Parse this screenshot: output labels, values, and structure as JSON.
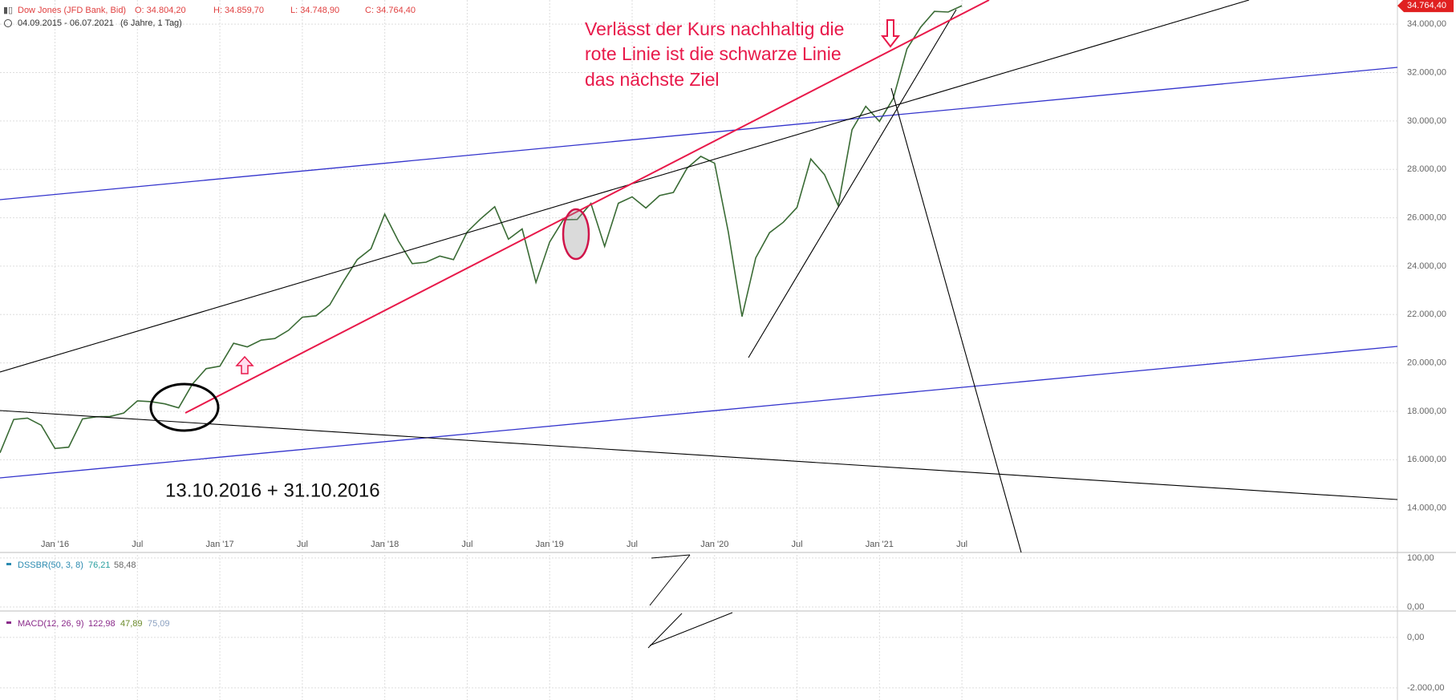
{
  "header": {
    "instrument": "Dow Jones (JFD Bank, Bid)",
    "open": "O: 34.804,20",
    "high": "H: 34.859,70",
    "low": "L: 34.748,90",
    "close": "C: 34.764,40",
    "range": "04.09.2015 - 06.07.2021",
    "period": "(6 Jahre, 1 Tag)"
  },
  "chart_data": [
    {
      "type": "line",
      "color": "#3a6b35",
      "categories": [
        null,
        null,
        null,
        null,
        "Jan '16",
        null,
        null,
        null,
        null,
        null,
        "Jul",
        null,
        null,
        null,
        null,
        null,
        "Jan '17",
        null,
        null,
        null,
        null,
        null,
        "Jul",
        null,
        null,
        null,
        null,
        null,
        "Jan '18",
        null,
        null,
        null,
        null,
        null,
        "Jul",
        null,
        null,
        null,
        null,
        null,
        "Jan '19",
        null,
        null,
        null,
        null,
        null,
        "Jul",
        null,
        null,
        null,
        null,
        null,
        "Jan '20",
        null,
        null,
        null,
        null,
        null,
        "Jul",
        null,
        null,
        null,
        null,
        null,
        "Jan '21",
        null,
        null,
        null,
        null,
        null,
        "Jul"
      ],
      "values": [
        16285,
        17664,
        17720,
        17425,
        16466,
        16517,
        17685,
        17774,
        17787,
        17930,
        18432,
        18401,
        18308,
        18142,
        19124,
        19763,
        19864,
        20812,
        20663,
        20941,
        21009,
        21350,
        21891,
        21948,
        22405,
        23377,
        24272,
        24719,
        26149,
        25029,
        24103,
        24163,
        24416,
        24271,
        25415,
        25965,
        26458,
        25116,
        25538,
        23327,
        24999,
        25916,
        25929,
        26593,
        24815,
        26600,
        26864,
        26403,
        26917,
        27046,
        28051,
        28538,
        28256,
        25409,
        21917,
        24346,
        25383,
        25813,
        26428,
        28430,
        27782,
        26502,
        29639,
        30606,
        29983,
        30932,
        32982,
        33875,
        34529,
        34503,
        34764
      ],
      "ylim": [
        12200,
        35000
      ],
      "yticks": [
        {
          "value": 14000,
          "label": "14.000,00"
        },
        {
          "value": 16000,
          "label": "16.000,00"
        },
        {
          "value": 18000,
          "label": "18.000,00"
        },
        {
          "value": 20000,
          "label": "20.000,00"
        },
        {
          "value": 22000,
          "label": "22.000,00"
        },
        {
          "value": 24000,
          "label": "24.000,00"
        },
        {
          "value": 26000,
          "label": "26.000,00"
        },
        {
          "value": 28000,
          "label": "28.000,00"
        },
        {
          "value": 30000,
          "label": "30.000,00"
        },
        {
          "value": 32000,
          "label": "32.000,00"
        },
        {
          "value": 34000,
          "label": "34.000,00"
        }
      ],
      "last_price": {
        "value": 34764.4,
        "label": "34.764,40"
      },
      "grid": true,
      "annotations": [
        "Verlässt der Kurs nachhaltig die",
        "rote Linie ist die schwarze Linie",
        "das nächste Ziel",
        "13.10.2016 + 31.10.2016"
      ]
    },
    {
      "type": "indicator",
      "title": "DSSBR(50, 3, 8)",
      "readings": [
        "76,21",
        "58,48"
      ],
      "ylim": [
        -5,
        108
      ],
      "yticks": [
        {
          "value": 0,
          "label": "0,00"
        },
        {
          "value": 100,
          "label": "100,00"
        }
      ]
    },
    {
      "type": "indicator",
      "title": "MACD(12, 26, 9)",
      "readings": [
        "122,98",
        "47,89",
        "75,09"
      ],
      "ylim": [
        -2480,
        980
      ],
      "yticks": [
        {
          "value": 0,
          "label": "0,00"
        },
        {
          "value": -2000,
          "label": "-2.000,00"
        }
      ]
    }
  ]
}
